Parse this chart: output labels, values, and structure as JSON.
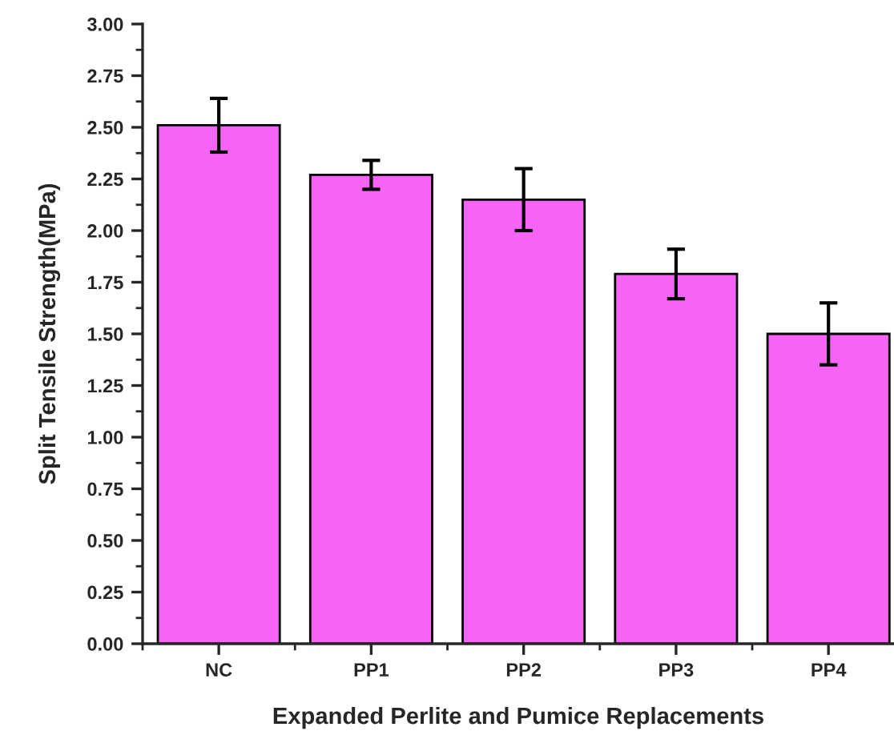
{
  "chart_data": {
    "type": "bar",
    "xlabel": "Expanded Perlite and Pumice Replacements",
    "ylabel": "Split Tensile Strength(MPa)",
    "categories": [
      "NC",
      "PP1",
      "PP2",
      "PP3",
      "PP4"
    ],
    "series": [
      {
        "color": "#f564f5",
        "values": [
          2.51,
          2.27,
          2.15,
          1.79,
          1.5
        ],
        "errors": [
          0.13,
          0.07,
          0.15,
          0.12,
          0.15
        ]
      }
    ],
    "ylim": [
      0,
      3
    ],
    "yticks": [
      {
        "value": 0,
        "label": "0.00"
      },
      {
        "value": 0.25,
        "label": "0.25"
      },
      {
        "value": 0.5,
        "label": "0.50"
      },
      {
        "value": 0.75,
        "label": "0.75"
      },
      {
        "value": 1,
        "label": "1.00"
      },
      {
        "value": 1.25,
        "label": "1.25"
      },
      {
        "value": 1.5,
        "label": "1.50"
      },
      {
        "value": 1.75,
        "label": "1.75"
      },
      {
        "value": 2,
        "label": "2.00"
      },
      {
        "value": 2.25,
        "label": "2.25"
      },
      {
        "value": 2.5,
        "label": "2.50"
      },
      {
        "value": 2.75,
        "label": "2.75"
      },
      {
        "value": 3,
        "label": "3.00"
      }
    ],
    "grid": false,
    "legend": false
  }
}
